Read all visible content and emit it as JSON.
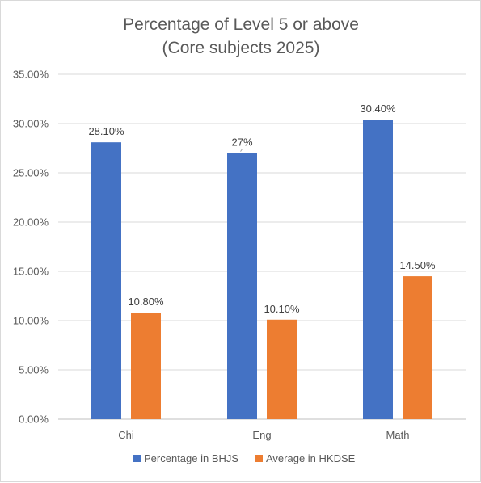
{
  "chart_data": {
    "type": "bar",
    "title": [
      "Percentage of Level 5 or above",
      "(Core subjects 2025)"
    ],
    "categories": [
      "Chi",
      "Eng",
      "Math"
    ],
    "series": [
      {
        "name": "Percentage in BHJS",
        "values": [
          28.1,
          27,
          30.4
        ],
        "labels": [
          "28.10%",
          "27%",
          "30.40%"
        ],
        "color": "#4472C4"
      },
      {
        "name": "Average in HKDSE",
        "values": [
          10.8,
          10.1,
          14.5
        ],
        "labels": [
          "10.80%",
          "10.10%",
          "14.50%"
        ],
        "color": "#ED7D31"
      }
    ],
    "ylim": [
      0,
      35
    ],
    "yticks": [
      "0.00%",
      "5.00%",
      "10.00%",
      "15.00%",
      "20.00%",
      "25.00%",
      "30.00%",
      "35.00%"
    ],
    "grid": true,
    "legend": "bottom"
  }
}
